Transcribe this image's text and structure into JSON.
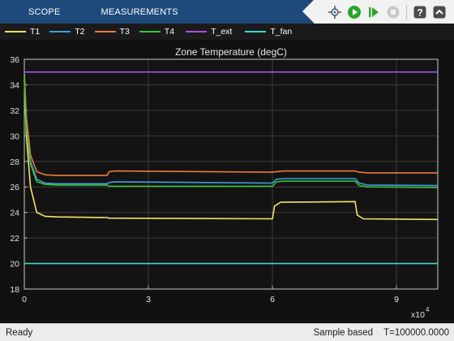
{
  "toolbar": {
    "tabs": [
      "SCOPE",
      "MEASUREMENTS"
    ],
    "buttons": [
      "signal-selector-icon",
      "run-icon",
      "step-forward-icon",
      "stop-icon",
      "help-icon",
      "expand-toolstrip-icon"
    ]
  },
  "legend": [
    {
      "name": "T1",
      "color": "#f5e36a"
    },
    {
      "name": "T2",
      "color": "#3f9ee0"
    },
    {
      "name": "T3",
      "color": "#ee7a3a"
    },
    {
      "name": "T4",
      "color": "#3ac23a"
    },
    {
      "name": "T_ext",
      "color": "#b050e0"
    },
    {
      "name": "T_fan",
      "color": "#3fd6d6"
    }
  ],
  "status": {
    "left": "Ready",
    "mode": "Sample based",
    "time": "T=100000.0000"
  },
  "chart_data": {
    "type": "line",
    "title": "Zone Temperature (degC)",
    "xlabel": "",
    "ylabel": "",
    "x_exponent_label": "x10",
    "x_exponent": "4",
    "xlim": [
      0,
      100000
    ],
    "ylim": [
      18,
      36
    ],
    "xticks": [
      0,
      30000,
      60000,
      90000
    ],
    "xtick_labels": [
      "0",
      "3",
      "6",
      "9"
    ],
    "yticks": [
      18,
      20,
      22,
      24,
      26,
      28,
      30,
      32,
      34,
      36
    ],
    "grid": true,
    "background": "#131313",
    "series": [
      {
        "name": "T1",
        "color": "#f5e36a",
        "x": [
          0,
          500,
          1500,
          3000,
          5000,
          8000,
          20000,
          20500,
          60000,
          60500,
          62000,
          80000,
          80500,
          82000,
          100000
        ],
        "y": [
          34.4,
          30.0,
          26.0,
          24.0,
          23.7,
          23.65,
          23.6,
          23.55,
          23.5,
          24.5,
          24.8,
          24.85,
          23.8,
          23.5,
          23.45
        ]
      },
      {
        "name": "T2",
        "color": "#3f9ee0",
        "x": [
          0,
          500,
          1500,
          3000,
          5000,
          8000,
          20000,
          20500,
          22000,
          60000,
          61000,
          63000,
          80000,
          81000,
          83000,
          100000
        ],
        "y": [
          35.0,
          31.0,
          28.0,
          26.6,
          26.3,
          26.25,
          26.25,
          26.35,
          26.4,
          26.3,
          26.6,
          26.65,
          26.65,
          26.3,
          26.15,
          26.1
        ]
      },
      {
        "name": "T3",
        "color": "#ee7a3a",
        "x": [
          0,
          500,
          1500,
          3000,
          5000,
          8000,
          20000,
          20500,
          22000,
          60000,
          61000,
          63000,
          80000,
          81000,
          83000,
          100000
        ],
        "y": [
          34.8,
          31.5,
          28.5,
          27.2,
          26.95,
          26.9,
          26.9,
          27.2,
          27.25,
          27.15,
          27.2,
          27.25,
          27.25,
          27.15,
          27.1,
          27.1
        ]
      },
      {
        "name": "T4",
        "color": "#3ac23a",
        "x": [
          0,
          500,
          1500,
          3000,
          5000,
          8000,
          20000,
          20500,
          22000,
          60000,
          61000,
          63000,
          80000,
          81000,
          83000,
          100000
        ],
        "y": [
          34.6,
          30.5,
          27.8,
          26.4,
          26.2,
          26.15,
          26.15,
          26.05,
          26.05,
          26.05,
          26.4,
          26.45,
          26.45,
          26.1,
          26.0,
          25.95
        ]
      },
      {
        "name": "T_ext",
        "color": "#b050e0",
        "x": [
          0,
          100000
        ],
        "y": [
          35.0,
          35.0
        ]
      },
      {
        "name": "T_fan",
        "color": "#3fd6d6",
        "x": [
          0,
          100000
        ],
        "y": [
          20.0,
          20.0
        ]
      }
    ]
  }
}
